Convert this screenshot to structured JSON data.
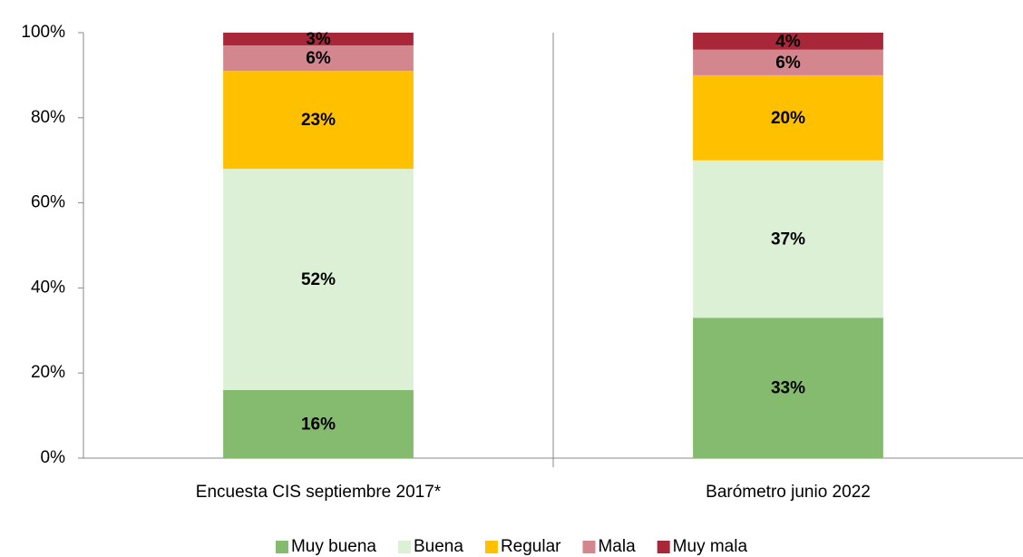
{
  "chart_data": {
    "type": "stacked_bar",
    "categories": [
      "Encuesta CIS septiembre 2017*",
      "Barómetro junio 2022"
    ],
    "series": [
      {
        "name": "Muy buena",
        "color": "#84bb6e",
        "values": [
          16,
          33
        ],
        "value_labels": [
          "16%",
          "33%"
        ]
      },
      {
        "name": "Buena",
        "color": "#dcf0d6",
        "values": [
          52,
          37
        ],
        "value_labels": [
          "52%",
          "37%"
        ]
      },
      {
        "name": "Regular",
        "color": "#ffc000",
        "values": [
          23,
          20
        ],
        "value_labels": [
          "23%",
          "20%"
        ]
      },
      {
        "name": "Mala",
        "color": "#d4868f",
        "values": [
          6,
          6
        ],
        "value_labels": [
          "6%",
          "6%"
        ]
      },
      {
        "name": "Muy mala",
        "color": "#a8283a",
        "values": [
          3,
          4
        ],
        "value_labels": [
          "3%",
          "4%"
        ]
      }
    ],
    "ylim": [
      0,
      100
    ],
    "yticks": [
      {
        "value": 0,
        "label": "0%"
      },
      {
        "value": 20,
        "label": "20%"
      },
      {
        "value": 40,
        "label": "40%"
      },
      {
        "value": 60,
        "label": "60%"
      },
      {
        "value": 80,
        "label": "80%"
      },
      {
        "value": 100,
        "label": "100%"
      }
    ],
    "legend": "bottom"
  }
}
